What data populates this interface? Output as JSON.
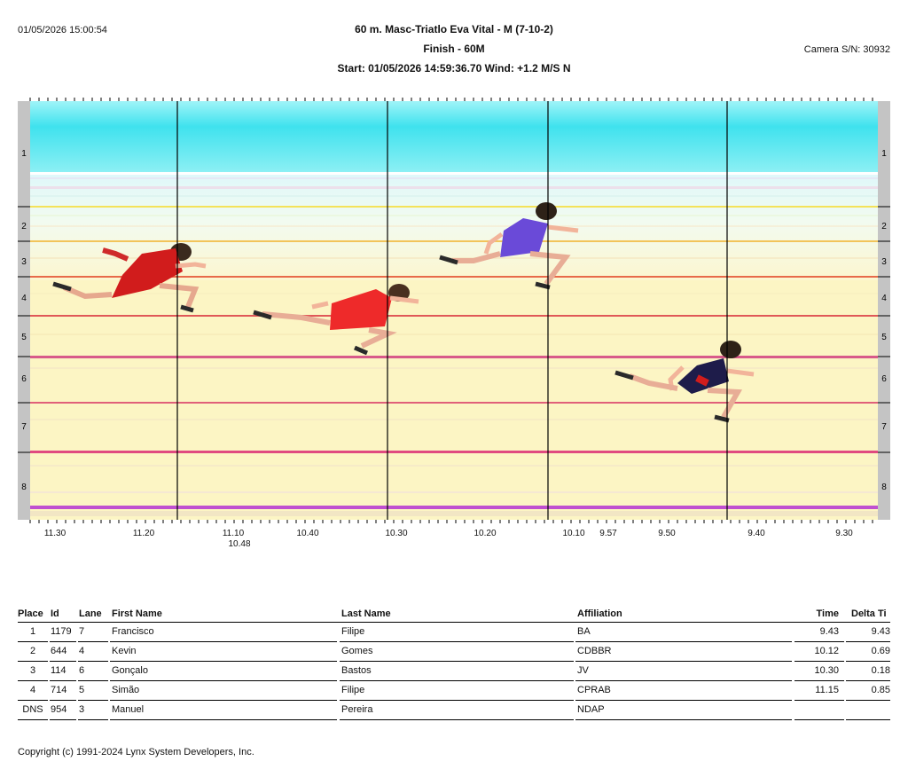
{
  "header": {
    "timestamp": "01/05/2026 15:00:54",
    "title": "60 m. Masc-Triatlo Eva Vital - M (7-10-2)",
    "subtitle": "Finish - 60M",
    "start_wind": "Start: 01/05/2026 14:59:36.70     Wind: +1.2 M/S N",
    "camera": "Camera S/N: 30932"
  },
  "lanes": [
    "1",
    "2",
    "3",
    "4",
    "5",
    "6",
    "7",
    "8"
  ],
  "time_axis": {
    "labels": [
      "11.30",
      "11.20",
      "11.10",
      "10.48",
      "10.40",
      "10.30",
      "10.20",
      "10.10",
      "9.57",
      "9.50",
      "9.40",
      "9.30"
    ]
  },
  "results": {
    "headers": {
      "place": "Place",
      "id": "Id",
      "lane": "Lane",
      "first_name": "First Name",
      "last_name": "Last Name",
      "affiliation": "Affiliation",
      "time": "Time",
      "delta": "Delta Ti"
    },
    "rows": [
      {
        "place": "1",
        "id": "1179",
        "lane": "7",
        "first_name": "Francisco",
        "last_name": "Filipe",
        "affiliation": "BA",
        "time": "9.43",
        "delta": "9.43"
      },
      {
        "place": "2",
        "id": "644",
        "lane": "4",
        "first_name": "Kevin",
        "last_name": "Gomes",
        "affiliation": "CDBBR",
        "time": "10.12",
        "delta": "0.69"
      },
      {
        "place": "3",
        "id": "114",
        "lane": "6",
        "first_name": "Gonçalo",
        "last_name": "Bastos",
        "affiliation": "JV",
        "time": "10.30",
        "delta": "0.18"
      },
      {
        "place": "4",
        "id": "714",
        "lane": "5",
        "first_name": "Simão",
        "last_name": "Filipe",
        "affiliation": "CPRAB",
        "time": "11.15",
        "delta": "0.85"
      },
      {
        "place": "DNS",
        "id": "954",
        "lane": "3",
        "first_name": "Manuel",
        "last_name": "Pereira",
        "affiliation": "NDAP",
        "time": "",
        "delta": ""
      }
    ]
  },
  "copyright": "Copyright (c) 1991-2024 Lynx System Developers, Inc.",
  "colors": {
    "lane1": "#44e6f0",
    "lane_bg": "#fbf4bf",
    "cursor": "#000000"
  }
}
